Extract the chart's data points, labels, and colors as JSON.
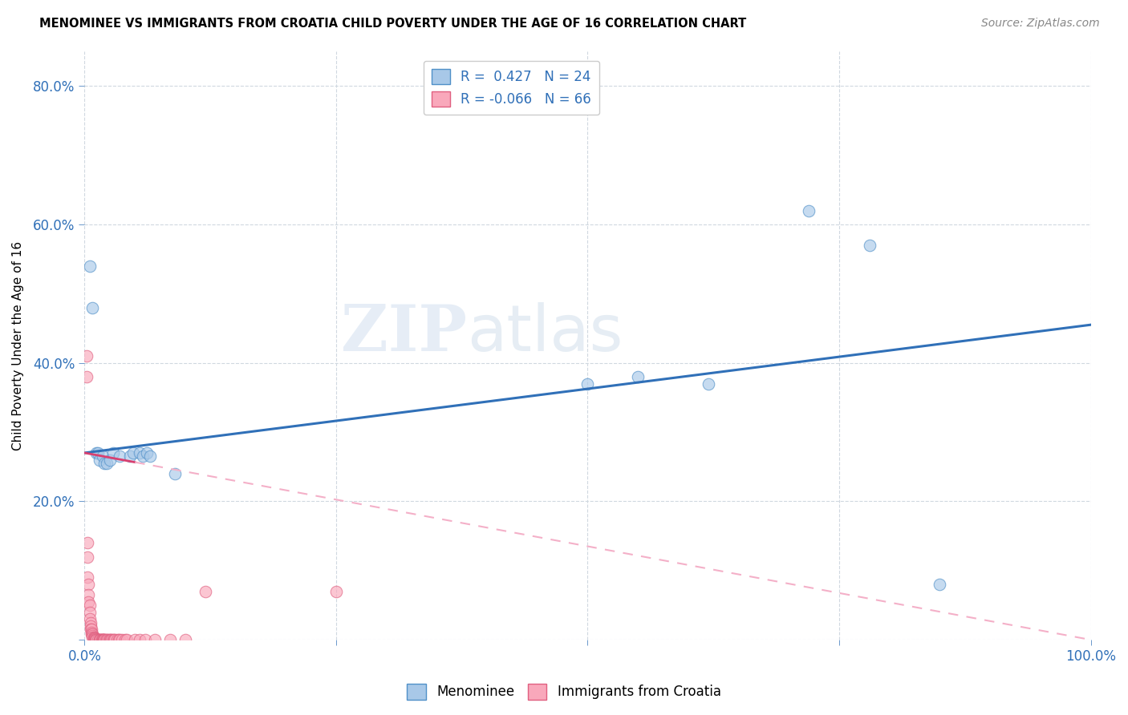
{
  "title": "MENOMINEE VS IMMIGRANTS FROM CROATIA CHILD POVERTY UNDER THE AGE OF 16 CORRELATION CHART",
  "source": "Source: ZipAtlas.com",
  "ylabel": "Child Poverty Under the Age of 16",
  "xlabel": "",
  "xlim": [
    0.0,
    1.0
  ],
  "ylim": [
    0.0,
    0.85
  ],
  "xticks": [
    0.0,
    0.25,
    0.5,
    0.75,
    1.0
  ],
  "xticklabels": [
    "0.0%",
    "",
    "",
    "",
    "100.0%"
  ],
  "yticks": [
    0.0,
    0.2,
    0.4,
    0.6,
    0.8
  ],
  "yticklabels": [
    "",
    "20.0%",
    "40.0%",
    "60.0%",
    "80.0%"
  ],
  "menominee_color": "#a8c8e8",
  "croatia_color": "#f9a8bb",
  "menominee_R": 0.427,
  "menominee_N": 24,
  "croatia_R": -0.066,
  "croatia_N": 66,
  "menominee_line_color": "#3070b8",
  "croatia_line_color": "#d84070",
  "croatia_line_dashed_color": "#f4b0c8",
  "watermark_zip": "ZIP",
  "watermark_atlas": "atlas",
  "legend_color": "#3070b8",
  "menominee_x": [
    0.005,
    0.008,
    0.012,
    0.013,
    0.015,
    0.018,
    0.02,
    0.022,
    0.025,
    0.028,
    0.035,
    0.045,
    0.048,
    0.055,
    0.058,
    0.062,
    0.065,
    0.09,
    0.55,
    0.62,
    0.72,
    0.78,
    0.85,
    0.5
  ],
  "menominee_y": [
    0.54,
    0.48,
    0.27,
    0.27,
    0.26,
    0.265,
    0.255,
    0.255,
    0.26,
    0.27,
    0.265,
    0.265,
    0.27,
    0.27,
    0.265,
    0.27,
    0.265,
    0.24,
    0.38,
    0.37,
    0.62,
    0.57,
    0.08,
    0.37
  ],
  "croatia_x": [
    0.002,
    0.002,
    0.003,
    0.003,
    0.003,
    0.004,
    0.004,
    0.004,
    0.005,
    0.005,
    0.005,
    0.006,
    0.006,
    0.006,
    0.007,
    0.007,
    0.007,
    0.008,
    0.008,
    0.008,
    0.009,
    0.009,
    0.01,
    0.01,
    0.01,
    0.011,
    0.011,
    0.012,
    0.012,
    0.013,
    0.015,
    0.015,
    0.016,
    0.016,
    0.017,
    0.017,
    0.018,
    0.018,
    0.019,
    0.019,
    0.02,
    0.02,
    0.021,
    0.022,
    0.023,
    0.024,
    0.025,
    0.026,
    0.027,
    0.028,
    0.029,
    0.03,
    0.032,
    0.034,
    0.035,
    0.037,
    0.04,
    0.042,
    0.05,
    0.055,
    0.06,
    0.07,
    0.085,
    0.1,
    0.12,
    0.25
  ],
  "croatia_y": [
    0.41,
    0.38,
    0.14,
    0.12,
    0.09,
    0.08,
    0.065,
    0.055,
    0.05,
    0.04,
    0.03,
    0.025,
    0.02,
    0.015,
    0.015,
    0.01,
    0.008,
    0.008,
    0.006,
    0.004,
    0.004,
    0.003,
    0.003,
    0.002,
    0.001,
    0.001,
    0.0,
    0.0,
    0.0,
    0.0,
    0.0,
    0.0,
    0.0,
    0.0,
    0.0,
    0.0,
    0.0,
    0.0,
    0.0,
    0.0,
    0.0,
    0.0,
    0.0,
    0.0,
    0.0,
    0.0,
    0.0,
    0.0,
    0.0,
    0.0,
    0.0,
    0.0,
    0.0,
    0.0,
    0.0,
    0.0,
    0.0,
    0.0,
    0.0,
    0.0,
    0.0,
    0.0,
    0.0,
    0.0,
    0.07,
    0.07
  ],
  "menominee_line_x0": 0.0,
  "menominee_line_y0": 0.27,
  "menominee_line_x1": 1.0,
  "menominee_line_y1": 0.455,
  "croatia_line_x0": 0.0,
  "croatia_line_y0": 0.27,
  "croatia_line_x1": 1.0,
  "croatia_line_y1": 0.0
}
